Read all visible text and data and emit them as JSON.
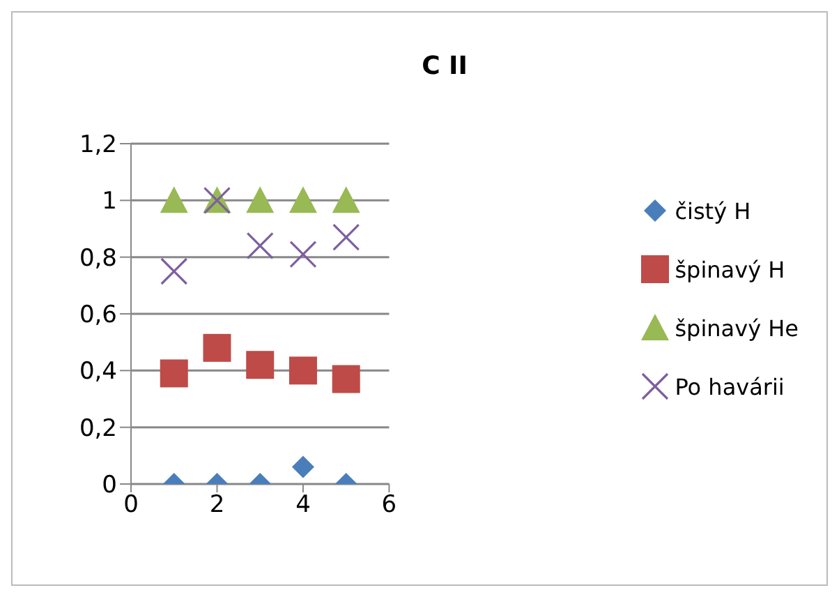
{
  "chart_data": {
    "type": "scatter",
    "title": "C II",
    "x": [
      1,
      2,
      3,
      4,
      5
    ],
    "series": [
      {
        "name": "čistý H",
        "color": "#4a7ebb",
        "marker": "diamond",
        "values": [
          0,
          0,
          0,
          0.06,
          0
        ]
      },
      {
        "name": "špinavý H",
        "color": "#be4b48",
        "marker": "square",
        "values": [
          0.39,
          0.48,
          0.42,
          0.4,
          0.37
        ]
      },
      {
        "name": "špinavý He",
        "color": "#98b954",
        "marker": "triangle",
        "values": [
          1,
          1,
          1,
          1,
          1
        ]
      },
      {
        "name": "Po havárii",
        "color": "#7d60a0",
        "marker": "cross",
        "values": [
          0.75,
          1,
          0.84,
          0.81,
          0.87
        ]
      }
    ],
    "xlim": [
      0,
      6
    ],
    "xticks": [
      0,
      2,
      4,
      6
    ],
    "ylim": [
      0,
      1.2
    ],
    "yticks": [
      0,
      {
        "value": 0.2,
        "label": "0,2"
      },
      {
        "value": 0.4,
        "label": "0,4"
      },
      {
        "value": 0.6,
        "label": "0,6"
      },
      {
        "value": 0.8,
        "label": "0,8"
      },
      1,
      {
        "value": 1.2,
        "label": "1,2"
      }
    ],
    "grid": "y",
    "legend": "right"
  }
}
